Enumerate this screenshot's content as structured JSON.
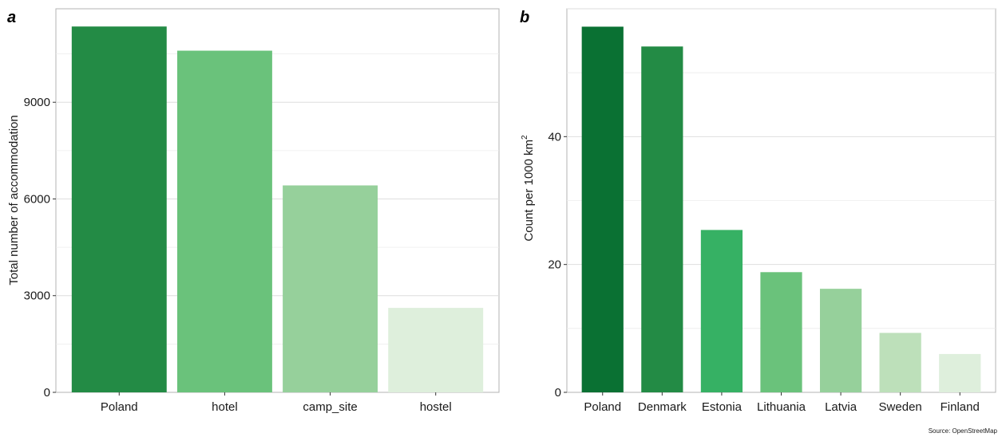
{
  "chart_data": [
    {
      "panel": "a",
      "type": "bar",
      "title": "",
      "xlabel": "",
      "ylabel": "Total number of accommodation",
      "categories": [
        "Poland",
        "hotel",
        "camp_site",
        "hostel"
      ],
      "values": [
        11350,
        10600,
        6420,
        2620
      ],
      "colors": [
        "#238b45",
        "#6ac27b",
        "#96d09b",
        "#deefdc"
      ],
      "ylim": [
        0,
        11900
      ],
      "yticks": [
        0,
        3000,
        6000,
        9000
      ],
      "grid": true
    },
    {
      "panel": "b",
      "type": "bar",
      "title": "",
      "xlabel": "",
      "ylabel": "Count per 1000 km",
      "ylabel_superscript": "2",
      "categories": [
        "Poland",
        "Denmark",
        "Estonia",
        "Lithuania",
        "Latvia",
        "Sweden",
        "Finland"
      ],
      "values": [
        57.2,
        54.1,
        25.4,
        18.8,
        16.2,
        9.3,
        6.0
      ],
      "colors": [
        "#0a7133",
        "#238b45",
        "#36b164",
        "#6ac27b",
        "#96d09b",
        "#bde0ba",
        "#deefdc"
      ],
      "ylim": [
        0,
        60
      ],
      "yticks": [
        0,
        20,
        40
      ],
      "grid": true
    }
  ],
  "source": "Source: OpenStreetMap"
}
